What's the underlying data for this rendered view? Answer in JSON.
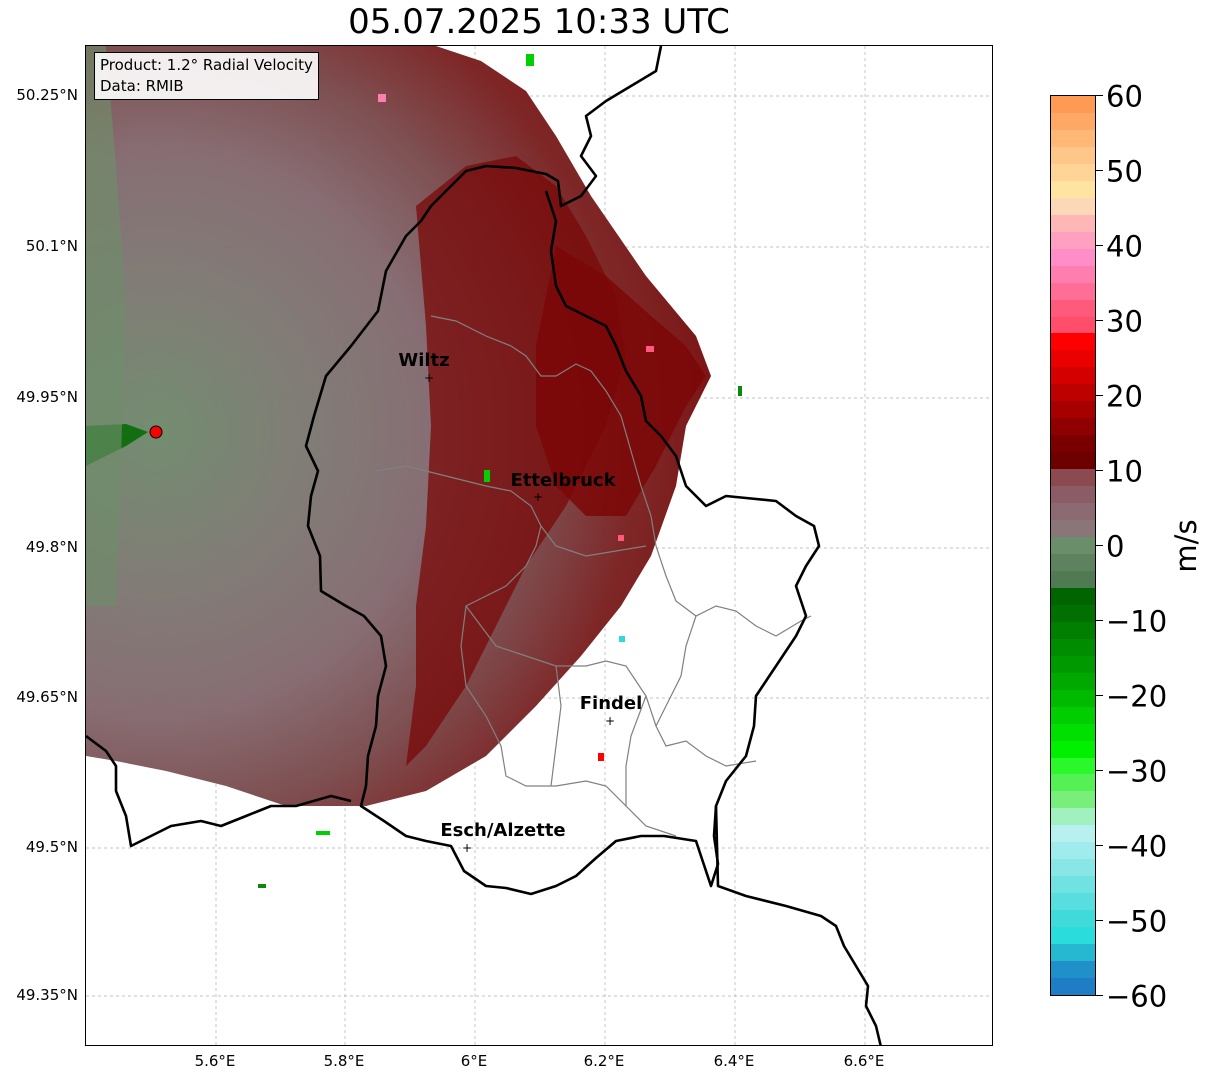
{
  "title": "05.07.2025 10:33 UTC",
  "info_box": {
    "product": "Product: 1.2° Radial Velocity",
    "source": "Data: RMIB"
  },
  "map": {
    "lat_labels": [
      "50.25°N",
      "50.1°N",
      "49.95°N",
      "49.8°N",
      "49.65°N",
      "49.5°N",
      "49.35°N"
    ],
    "lon_labels": [
      "5.6°E",
      "5.8°E",
      "6°E",
      "6.2°E",
      "6.4°E",
      "6.6°E"
    ],
    "cities": [
      {
        "name": "Wiltz"
      },
      {
        "name": "Ettelbruck"
      },
      {
        "name": "Findel"
      },
      {
        "name": "Esch/Alzette"
      }
    ],
    "radar_marker": "radar-site",
    "colors": {
      "border": "#000000",
      "canton": "#808080",
      "grid": "#b0b0b0",
      "radar": "#ff0000"
    }
  },
  "colorbar": {
    "unit": "m/s",
    "ticks": [
      "60",
      "50",
      "40",
      "30",
      "20",
      "10",
      "0",
      "−10",
      "−20",
      "−30",
      "−40",
      "−50",
      "−60"
    ],
    "colors": [
      "#ff9a55",
      "#ffa866",
      "#ffb876",
      "#ffc68a",
      "#ffd496",
      "#ffe3a0",
      "#fcd8b6",
      "#ffb6b6",
      "#ffa0c0",
      "#ff8ec8",
      "#ff7eb0",
      "#ff6e96",
      "#ff5a7c",
      "#ff4d6a",
      "#ff0000",
      "#ea0000",
      "#d40000",
      "#bd0000",
      "#a60000",
      "#900000",
      "#7a0000",
      "#6c0000",
      "#8a4a4f",
      "#8c5c66",
      "#8c6a74",
      "#8a7678",
      "#6a8e6a",
      "#5e8260",
      "#507a52",
      "#006400",
      "#007000",
      "#007e00",
      "#008c00",
      "#009a00",
      "#00a800",
      "#00ba00",
      "#00ce00",
      "#00e000",
      "#00f000",
      "#2af82a",
      "#54f054",
      "#7aee7a",
      "#a0f0c0",
      "#b8f0f0",
      "#a0ecec",
      "#88e6e6",
      "#70e2e2",
      "#58dede",
      "#40dada",
      "#2adcdc",
      "#26b8d0",
      "#2090c8",
      "#1e7dc4"
    ]
  }
}
